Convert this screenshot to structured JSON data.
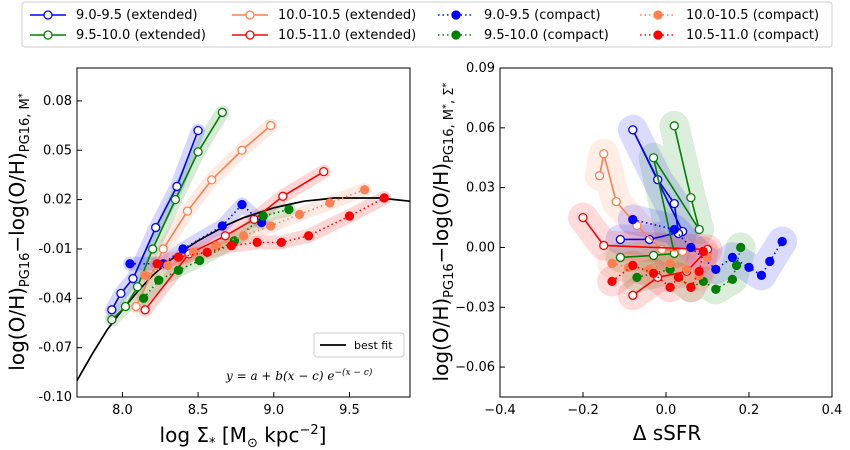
{
  "legend": {
    "items": [
      {
        "label": "9.0-9.5 (extended)",
        "color": "#0000ff",
        "style": "open-solid"
      },
      {
        "label": "9.5-10.0 (extended)",
        "color": "#008000",
        "style": "open-solid"
      },
      {
        "label": "10.0-10.5 (extended)",
        "color": "#ff7f50",
        "style": "open-solid"
      },
      {
        "label": "10.5-11.0 (extended)",
        "color": "#ff0000",
        "style": "open-solid"
      },
      {
        "label": "9.0-9.5 (compact)",
        "color": "#0000ff",
        "style": "filled-dotted"
      },
      {
        "label": "9.5-10.0 (compact)",
        "color": "#008000",
        "style": "filled-dotted"
      },
      {
        "label": "10.0-10.5 (compact)",
        "color": "#ff7f50",
        "style": "filled-dotted"
      },
      {
        "label": "10.5-11.0 (compact)",
        "color": "#ff0000",
        "style": "filled-dotted"
      }
    ]
  },
  "chart_data": [
    {
      "type": "line",
      "xlabel_main": "log Σ",
      "xlabel_sub": "*",
      "xlabel_unit": "[M",
      "xlabel_unit2": " kpc",
      "xlabel_exp": "−2",
      "xlabel_close": "]",
      "ylabel": "log(O/H)PG16−log(O/H)PG16, M*",
      "xlim": [
        7.7,
        9.9
      ],
      "ylim": [
        -0.1,
        0.1
      ],
      "xticks": [
        "8.0",
        "8.5",
        "9.0",
        "9.5"
      ],
      "xtick_values": [
        8.0,
        8.5,
        9.0,
        9.5
      ],
      "yticks": [
        "-0.10",
        "-0.07",
        "-0.04",
        "-0.01",
        "0.02",
        "0.05",
        "0.08"
      ],
      "ytick_values": [
        -0.1,
        -0.07,
        -0.04,
        -0.01,
        0.02,
        0.05,
        0.08
      ],
      "fit_legend_label": "best fit",
      "fit_equation": "y = a + b(x − c) e^−(x − c)",
      "fit_curve": {
        "x": [
          7.7,
          7.8,
          7.9,
          8.0,
          8.1,
          8.2,
          8.3,
          8.4,
          8.5,
          8.6,
          8.7,
          8.8,
          8.9,
          9.0,
          9.1,
          9.2,
          9.3,
          9.4,
          9.5,
          9.6,
          9.7,
          9.8,
          9.9
        ],
        "y": [
          -0.09,
          -0.074,
          -0.059,
          -0.047,
          -0.036,
          -0.026,
          -0.018,
          -0.011,
          -0.005,
          0.0,
          0.005,
          0.009,
          0.012,
          0.015,
          0.017,
          0.019,
          0.02,
          0.021,
          0.021,
          0.021,
          0.021,
          0.02,
          0.019
        ]
      },
      "series": [
        {
          "name": "9.0-9.5 (extended)",
          "color": "#0000ff",
          "filled": false,
          "dotted": false,
          "x": [
            7.93,
            7.99,
            8.07,
            8.22,
            8.36,
            8.5
          ],
          "y": [
            -0.047,
            -0.037,
            -0.028,
            0.003,
            0.028,
            0.062
          ]
        },
        {
          "name": "9.5-10.0 (extended)",
          "color": "#008000",
          "filled": false,
          "dotted": false,
          "x": [
            7.93,
            8.02,
            8.1,
            8.2,
            8.35,
            8.5,
            8.66
          ],
          "y": [
            -0.053,
            -0.045,
            -0.033,
            -0.01,
            0.02,
            0.049,
            0.073
          ]
        },
        {
          "name": "10.0-10.5 (extended)",
          "color": "#ff7f50",
          "filled": false,
          "dotted": false,
          "x": [
            8.09,
            8.27,
            8.43,
            8.59,
            8.79,
            8.98
          ],
          "y": [
            -0.045,
            -0.01,
            0.013,
            0.032,
            0.05,
            0.065
          ]
        },
        {
          "name": "10.5-11.0 (extended)",
          "color": "#ff0000",
          "filled": false,
          "dotted": false,
          "x": [
            8.15,
            8.44,
            8.68,
            8.87,
            9.06,
            9.33
          ],
          "y": [
            -0.047,
            -0.013,
            -0.002,
            0.008,
            0.022,
            0.037
          ]
        },
        {
          "name": "9.0-9.5 (compact)",
          "color": "#0000ff",
          "filled": true,
          "dotted": true,
          "x": [
            8.05,
            8.27,
            8.4,
            8.66,
            8.79,
            8.92
          ],
          "y": [
            -0.019,
            -0.019,
            -0.01,
            0.004,
            0.017,
            0.006
          ]
        },
        {
          "name": "9.5-10.0 (compact)",
          "color": "#008000",
          "filled": true,
          "dotted": true,
          "x": [
            8.14,
            8.24,
            8.37,
            8.51,
            8.74,
            8.93,
            9.1
          ],
          "y": [
            -0.04,
            -0.029,
            -0.023,
            -0.017,
            -0.005,
            0.01,
            0.014
          ]
        },
        {
          "name": "10.0-10.5 (compact)",
          "color": "#ff7f50",
          "filled": true,
          "dotted": true,
          "x": [
            8.15,
            8.3,
            8.47,
            8.62,
            8.8,
            8.98,
            9.17,
            9.37,
            9.6
          ],
          "y": [
            -0.026,
            -0.02,
            -0.012,
            -0.008,
            -0.002,
            0.004,
            0.011,
            0.018,
            0.026
          ]
        },
        {
          "name": "10.5-11.0 (compact)",
          "color": "#ff0000",
          "filled": true,
          "dotted": true,
          "x": [
            8.23,
            8.37,
            8.56,
            8.72,
            8.89,
            9.05,
            9.23,
            9.5,
            9.73
          ],
          "y": [
            -0.019,
            -0.015,
            -0.012,
            -0.008,
            -0.006,
            -0.006,
            -0.002,
            0.01,
            0.021
          ]
        }
      ]
    },
    {
      "type": "line",
      "xlabel": "Δ sSFR",
      "ylabel": "log(O/H)PG16−log(O/H)PG16, M*, Σ*",
      "xlim": [
        -0.4,
        0.4
      ],
      "ylim": [
        -0.075,
        0.09
      ],
      "xticks": [
        "−0.4",
        "−0.2",
        "0.0",
        "0.2",
        "0.4"
      ],
      "xtick_values": [
        -0.4,
        -0.2,
        0.0,
        0.2,
        0.4
      ],
      "yticks": [
        "−0.06",
        "−0.03",
        "0.00",
        "0.03",
        "0.06",
        "0.09"
      ],
      "ytick_values": [
        -0.06,
        -0.03,
        0.0,
        0.03,
        0.06,
        0.09
      ],
      "series": [
        {
          "name": "9.0-9.5 (extended)",
          "color": "#0000ff",
          "filled": false,
          "dotted": false,
          "x": [
            -0.11,
            -0.04,
            0.04,
            -0.08,
            -0.02,
            0.02,
            0.03
          ],
          "y": [
            0.004,
            0.004,
            0.008,
            0.059,
            0.034,
            0.022,
            0.007
          ]
        },
        {
          "name": "9.5-10.0 (extended)",
          "color": "#008000",
          "filled": false,
          "dotted": false,
          "x": [
            -0.11,
            -0.03,
            0.02,
            -0.03,
            0.08,
            0.06,
            0.02
          ],
          "y": [
            -0.005,
            -0.004,
            -0.003,
            0.045,
            0.009,
            0.025,
            0.061
          ]
        },
        {
          "name": "10.0-10.5 (extended)",
          "color": "#ff7f50",
          "filled": false,
          "dotted": false,
          "x": [
            -0.16,
            -0.15,
            -0.12,
            -0.07,
            -0.01,
            0.04
          ],
          "y": [
            0.036,
            0.047,
            0.023,
            0.011,
            -0.001,
            -0.002
          ]
        },
        {
          "name": "10.5-11.0 (extended)",
          "color": "#ff0000",
          "filled": false,
          "dotted": false,
          "x": [
            -0.08,
            -0.02,
            0.05,
            0.1,
            -0.15,
            -0.2
          ],
          "y": [
            -0.024,
            -0.015,
            -0.012,
            -0.001,
            0.001,
            0.015
          ]
        },
        {
          "name": "9.0-9.5 (compact)",
          "color": "#0000ff",
          "filled": true,
          "dotted": true,
          "x": [
            -0.08,
            0.02,
            0.06,
            0.12,
            0.16,
            0.2,
            0.23,
            0.25,
            0.28
          ],
          "y": [
            0.014,
            0.009,
            0.0,
            -0.011,
            -0.005,
            -0.01,
            -0.014,
            -0.007,
            0.003
          ]
        },
        {
          "name": "9.5-10.0 (compact)",
          "color": "#008000",
          "filled": true,
          "dotted": true,
          "x": [
            -0.07,
            0.01,
            0.06,
            0.09,
            0.12,
            0.16,
            0.17,
            0.18
          ],
          "y": [
            -0.015,
            -0.011,
            -0.02,
            -0.017,
            -0.021,
            -0.016,
            -0.009,
            0.0
          ]
        },
        {
          "name": "10.0-10.5 (compact)",
          "color": "#ff7f50",
          "filled": true,
          "dotted": true,
          "x": [
            -0.13,
            -0.09,
            -0.04,
            0.01,
            0.05,
            0.08,
            0.1
          ],
          "y": [
            -0.008,
            -0.01,
            -0.011,
            -0.008,
            -0.011,
            -0.014,
            -0.005
          ]
        },
        {
          "name": "10.5-11.0 (compact)",
          "color": "#ff0000",
          "filled": true,
          "dotted": true,
          "x": [
            -0.13,
            -0.08,
            -0.03,
            0.01,
            0.03,
            0.06,
            0.08,
            0.09
          ],
          "y": [
            -0.017,
            -0.009,
            -0.013,
            -0.02,
            -0.015,
            -0.02,
            -0.012,
            -0.002
          ]
        }
      ]
    }
  ]
}
